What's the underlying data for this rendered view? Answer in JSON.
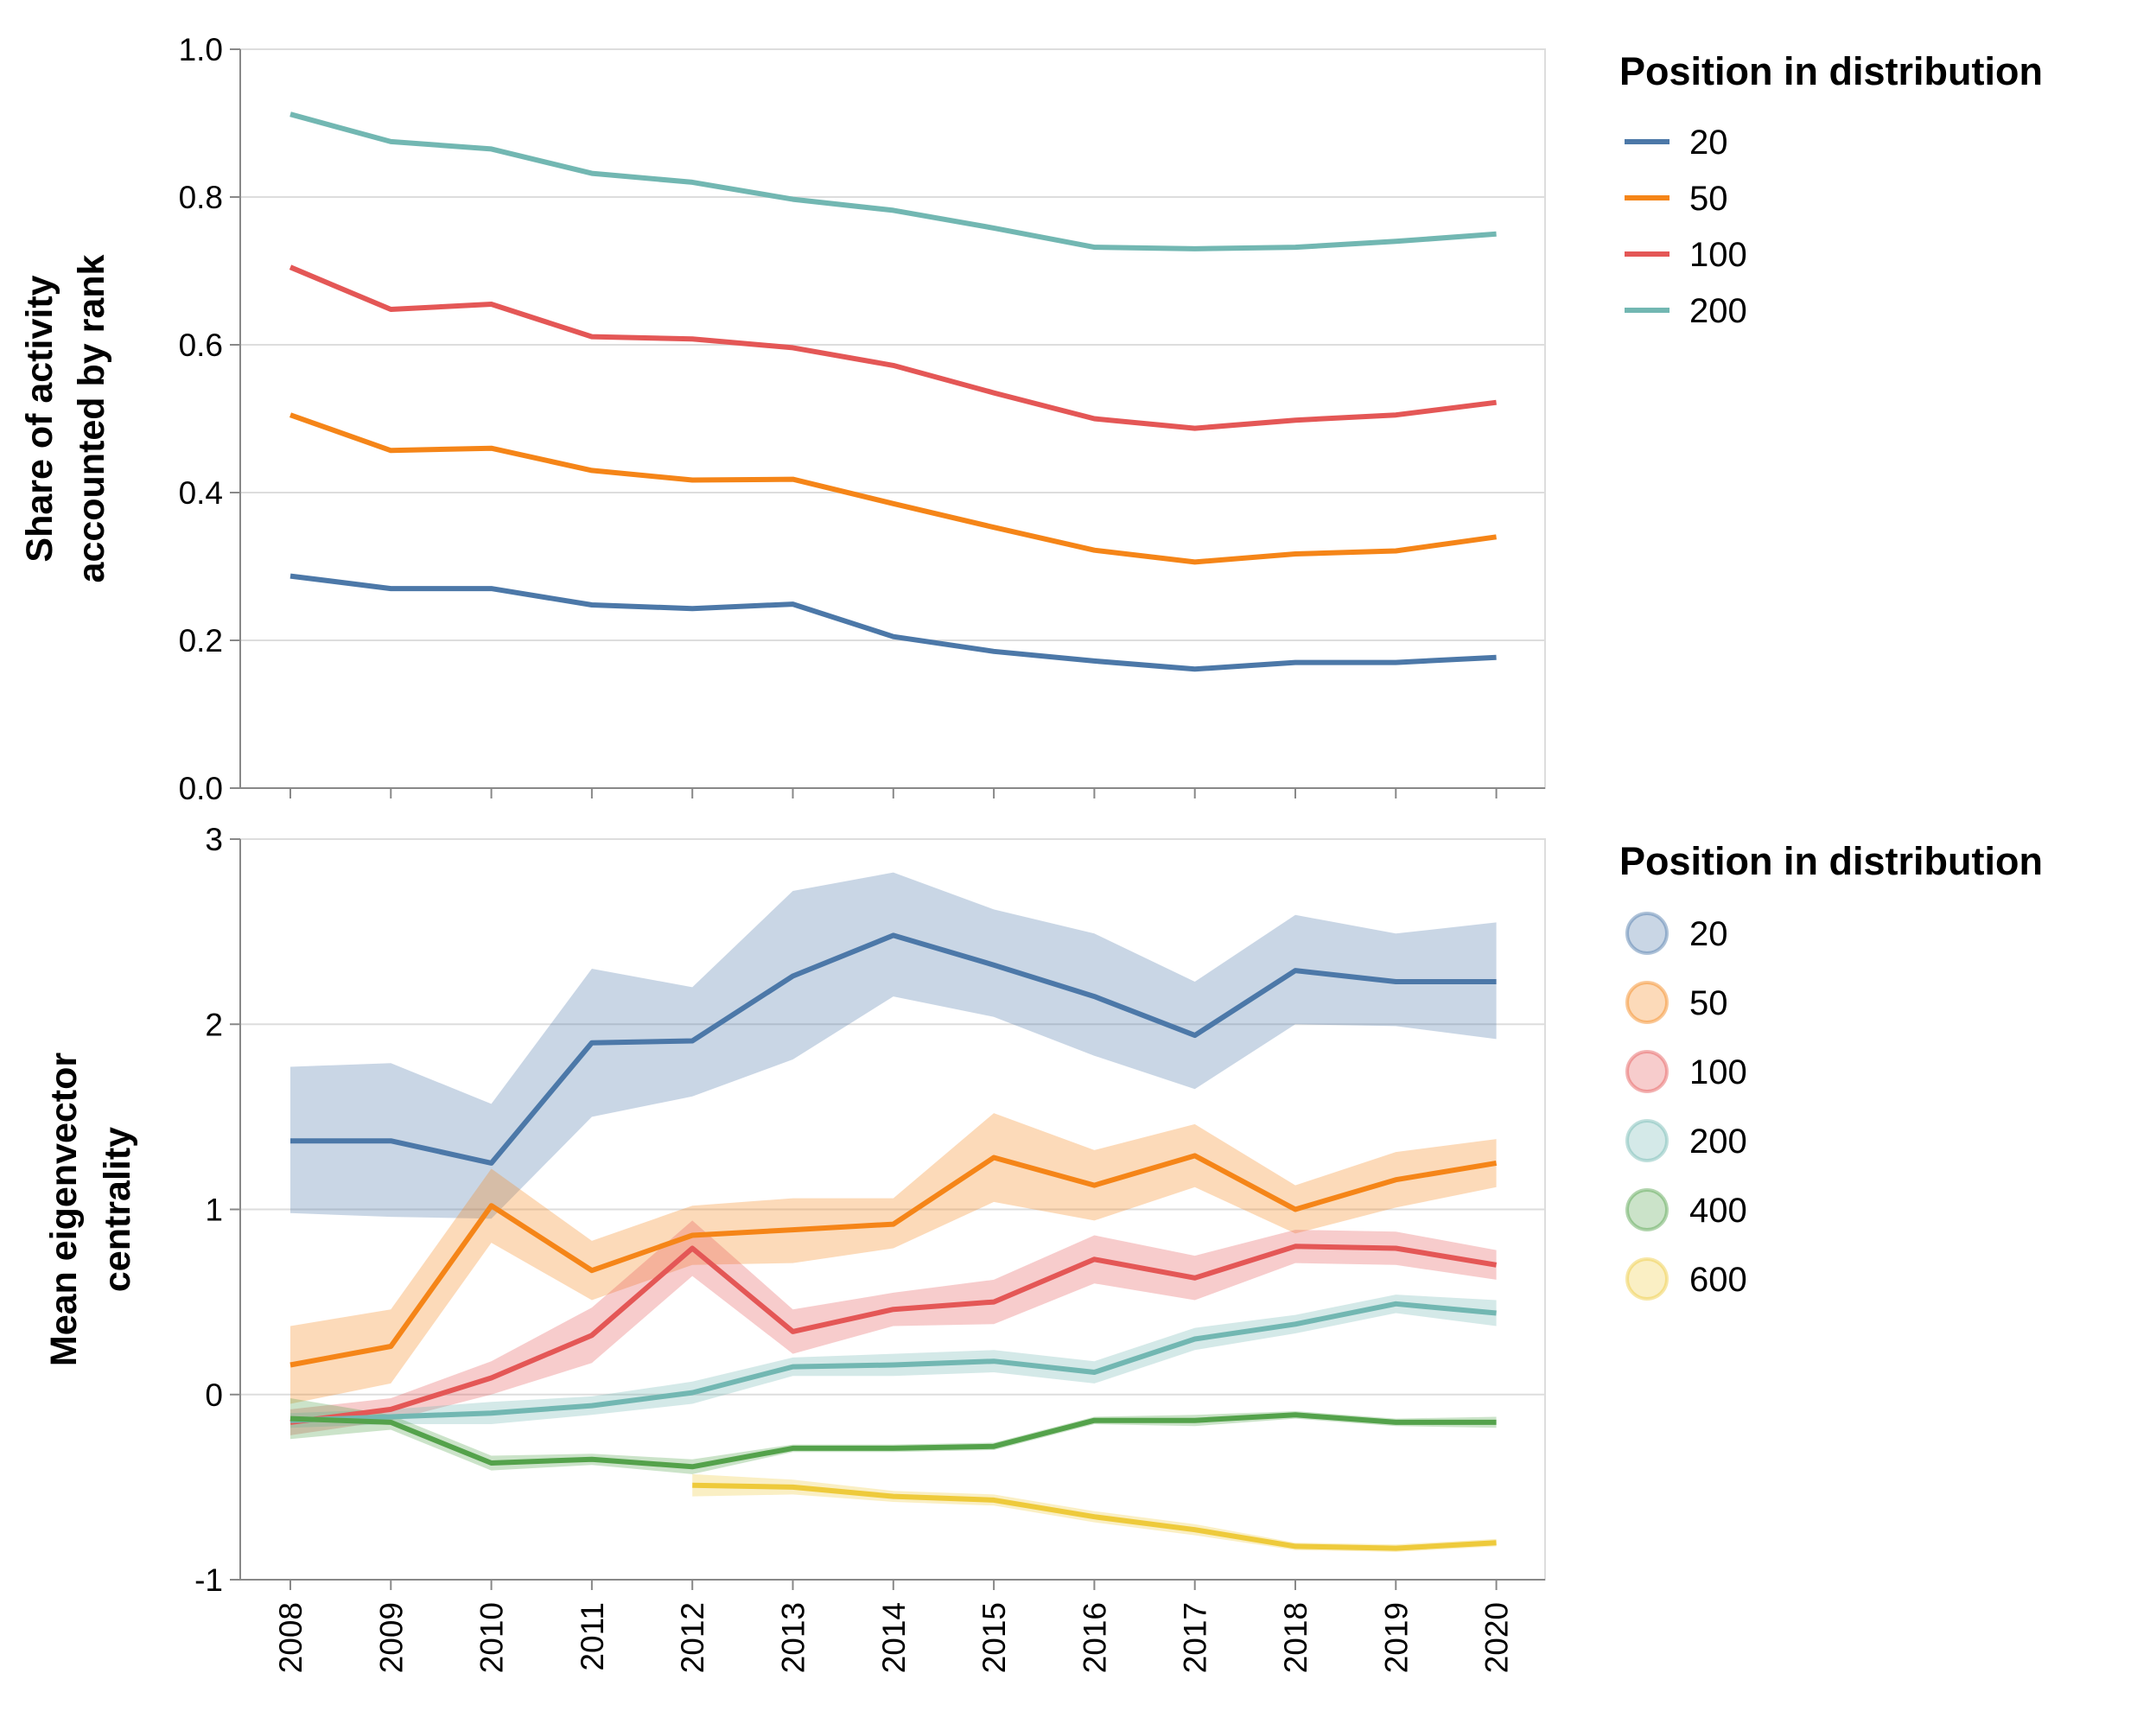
{
  "chart_data": [
    {
      "type": "line",
      "ylabel": "Share of activity accounted by rank",
      "ylabel_lines": [
        "Share of activity",
        "accounted by rank"
      ],
      "ylim": [
        0,
        1
      ],
      "yticks": [
        0,
        0.2,
        0.4,
        0.6,
        0.8,
        1.0
      ],
      "ytick_labels": [
        "0.0",
        "0.2",
        "0.4",
        "0.6",
        "0.8",
        "1.0"
      ],
      "grid": true,
      "legend": {
        "title": "Position in distribution",
        "placement": "right",
        "symbol": "line"
      },
      "x": [
        2008,
        2009,
        2010,
        2011,
        2012,
        2013,
        2014,
        2015,
        2016,
        2017,
        2018,
        2019,
        2020
      ],
      "series": [
        {
          "name": "20",
          "color": "#4c78a8",
          "values": [
            0.287,
            0.27,
            0.27,
            0.248,
            0.243,
            0.249,
            0.205,
            0.185,
            0.172,
            0.161,
            0.17,
            0.17,
            0.177
          ]
        },
        {
          "name": "50",
          "color": "#f58518",
          "values": [
            0.505,
            0.457,
            0.46,
            0.43,
            0.417,
            0.418,
            0.385,
            0.353,
            0.322,
            0.306,
            0.317,
            0.321,
            0.34
          ]
        },
        {
          "name": "100",
          "color": "#e45756",
          "values": [
            0.705,
            0.648,
            0.655,
            0.611,
            0.608,
            0.596,
            0.572,
            0.535,
            0.5,
            0.487,
            0.498,
            0.505,
            0.522
          ]
        },
        {
          "name": "200",
          "color": "#72b7b2",
          "values": [
            0.912,
            0.875,
            0.865,
            0.832,
            0.82,
            0.797,
            0.782,
            0.758,
            0.732,
            0.73,
            0.732,
            0.74,
            0.75
          ]
        }
      ]
    },
    {
      "type": "line",
      "ylabel": "Mean eigenvector centrality",
      "ylabel_lines": [
        "Mean eigenvector",
        "centrality"
      ],
      "ylim": [
        -1,
        3
      ],
      "yticks": [
        -1,
        0,
        1,
        2,
        3
      ],
      "ytick_labels": [
        "-1",
        "0",
        "1",
        "2",
        "3"
      ],
      "xlabel": "",
      "xticks": [
        "2008",
        "2009",
        "2010",
        "2011",
        "2012",
        "2013",
        "2014",
        "2015",
        "2016",
        "2017",
        "2018",
        "2019",
        "2020"
      ],
      "grid": true,
      "confidence_bands": true,
      "legend": {
        "title": "Position in distribution",
        "placement": "right",
        "symbol": "circle"
      },
      "x": [
        2008,
        2009,
        2010,
        2011,
        2012,
        2013,
        2014,
        2015,
        2016,
        2017,
        2018,
        2019,
        2020
      ],
      "series": [
        {
          "name": "20",
          "color": "#4c78a8",
          "values": [
            1.37,
            1.37,
            1.25,
            1.9,
            1.91,
            2.26,
            2.48,
            2.32,
            2.15,
            1.94,
            2.29,
            2.23,
            2.23
          ],
          "lower": [
            0.98,
            0.96,
            0.95,
            1.5,
            1.61,
            1.81,
            2.15,
            2.04,
            1.83,
            1.65,
            2.0,
            1.99,
            1.92
          ],
          "upper": [
            1.77,
            1.79,
            1.57,
            2.3,
            2.2,
            2.72,
            2.82,
            2.62,
            2.49,
            2.23,
            2.59,
            2.49,
            2.55
          ]
        },
        {
          "name": "50",
          "color": "#f58518",
          "values": [
            0.16,
            0.26,
            1.02,
            0.67,
            0.86,
            0.89,
            0.92,
            1.28,
            1.13,
            1.29,
            1.0,
            1.16,
            1.25
          ],
          "lower": [
            -0.05,
            0.06,
            0.82,
            0.51,
            0.7,
            0.71,
            0.79,
            1.04,
            0.94,
            1.12,
            0.87,
            1.01,
            1.12
          ],
          "upper": [
            0.37,
            0.46,
            1.22,
            0.83,
            1.02,
            1.06,
            1.06,
            1.52,
            1.32,
            1.46,
            1.13,
            1.31,
            1.38
          ]
        },
        {
          "name": "100",
          "color": "#e45756",
          "values": [
            -0.15,
            -0.08,
            0.09,
            0.32,
            0.79,
            0.34,
            0.46,
            0.5,
            0.73,
            0.63,
            0.8,
            0.79,
            0.7
          ],
          "lower": [
            -0.22,
            -0.14,
            0.0,
            0.17,
            0.64,
            0.22,
            0.37,
            0.38,
            0.6,
            0.51,
            0.71,
            0.7,
            0.62
          ],
          "upper": [
            -0.08,
            -0.02,
            0.18,
            0.47,
            0.94,
            0.46,
            0.55,
            0.62,
            0.86,
            0.75,
            0.89,
            0.88,
            0.78
          ]
        },
        {
          "name": "200",
          "color": "#72b7b2",
          "values": [
            -0.14,
            -0.12,
            -0.1,
            -0.06,
            0.01,
            0.15,
            0.16,
            0.18,
            0.12,
            0.3,
            0.38,
            0.49,
            0.44
          ],
          "lower": [
            -0.18,
            -0.16,
            -0.16,
            -0.11,
            -0.05,
            0.1,
            0.1,
            0.12,
            0.06,
            0.24,
            0.33,
            0.44,
            0.37
          ],
          "upper": [
            -0.1,
            -0.08,
            -0.04,
            -0.01,
            0.07,
            0.2,
            0.22,
            0.24,
            0.18,
            0.36,
            0.43,
            0.54,
            0.51
          ]
        },
        {
          "name": "400",
          "color": "#54a24b",
          "values": [
            -0.13,
            -0.15,
            -0.37,
            -0.35,
            -0.39,
            -0.29,
            -0.29,
            -0.28,
            -0.14,
            -0.14,
            -0.11,
            -0.15,
            -0.15
          ],
          "lower": [
            -0.24,
            -0.19,
            -0.41,
            -0.38,
            -0.43,
            -0.31,
            -0.31,
            -0.3,
            -0.16,
            -0.17,
            -0.13,
            -0.17,
            -0.18
          ],
          "upper": [
            -0.02,
            -0.11,
            -0.33,
            -0.32,
            -0.35,
            -0.27,
            -0.27,
            -0.26,
            -0.12,
            -0.11,
            -0.09,
            -0.13,
            -0.12
          ]
        },
        {
          "name": "600",
          "color": "#eeca3b",
          "values": [
            null,
            null,
            null,
            null,
            -0.49,
            -0.5,
            -0.55,
            -0.57,
            -0.66,
            -0.73,
            -0.82,
            -0.83,
            -0.8
          ],
          "lower": [
            null,
            null,
            null,
            null,
            -0.55,
            -0.54,
            -0.58,
            -0.6,
            -0.69,
            -0.76,
            -0.84,
            -0.85,
            -0.82
          ],
          "upper": [
            null,
            null,
            null,
            null,
            -0.43,
            -0.46,
            -0.52,
            -0.54,
            -0.63,
            -0.7,
            -0.8,
            -0.81,
            -0.78
          ]
        }
      ]
    }
  ]
}
